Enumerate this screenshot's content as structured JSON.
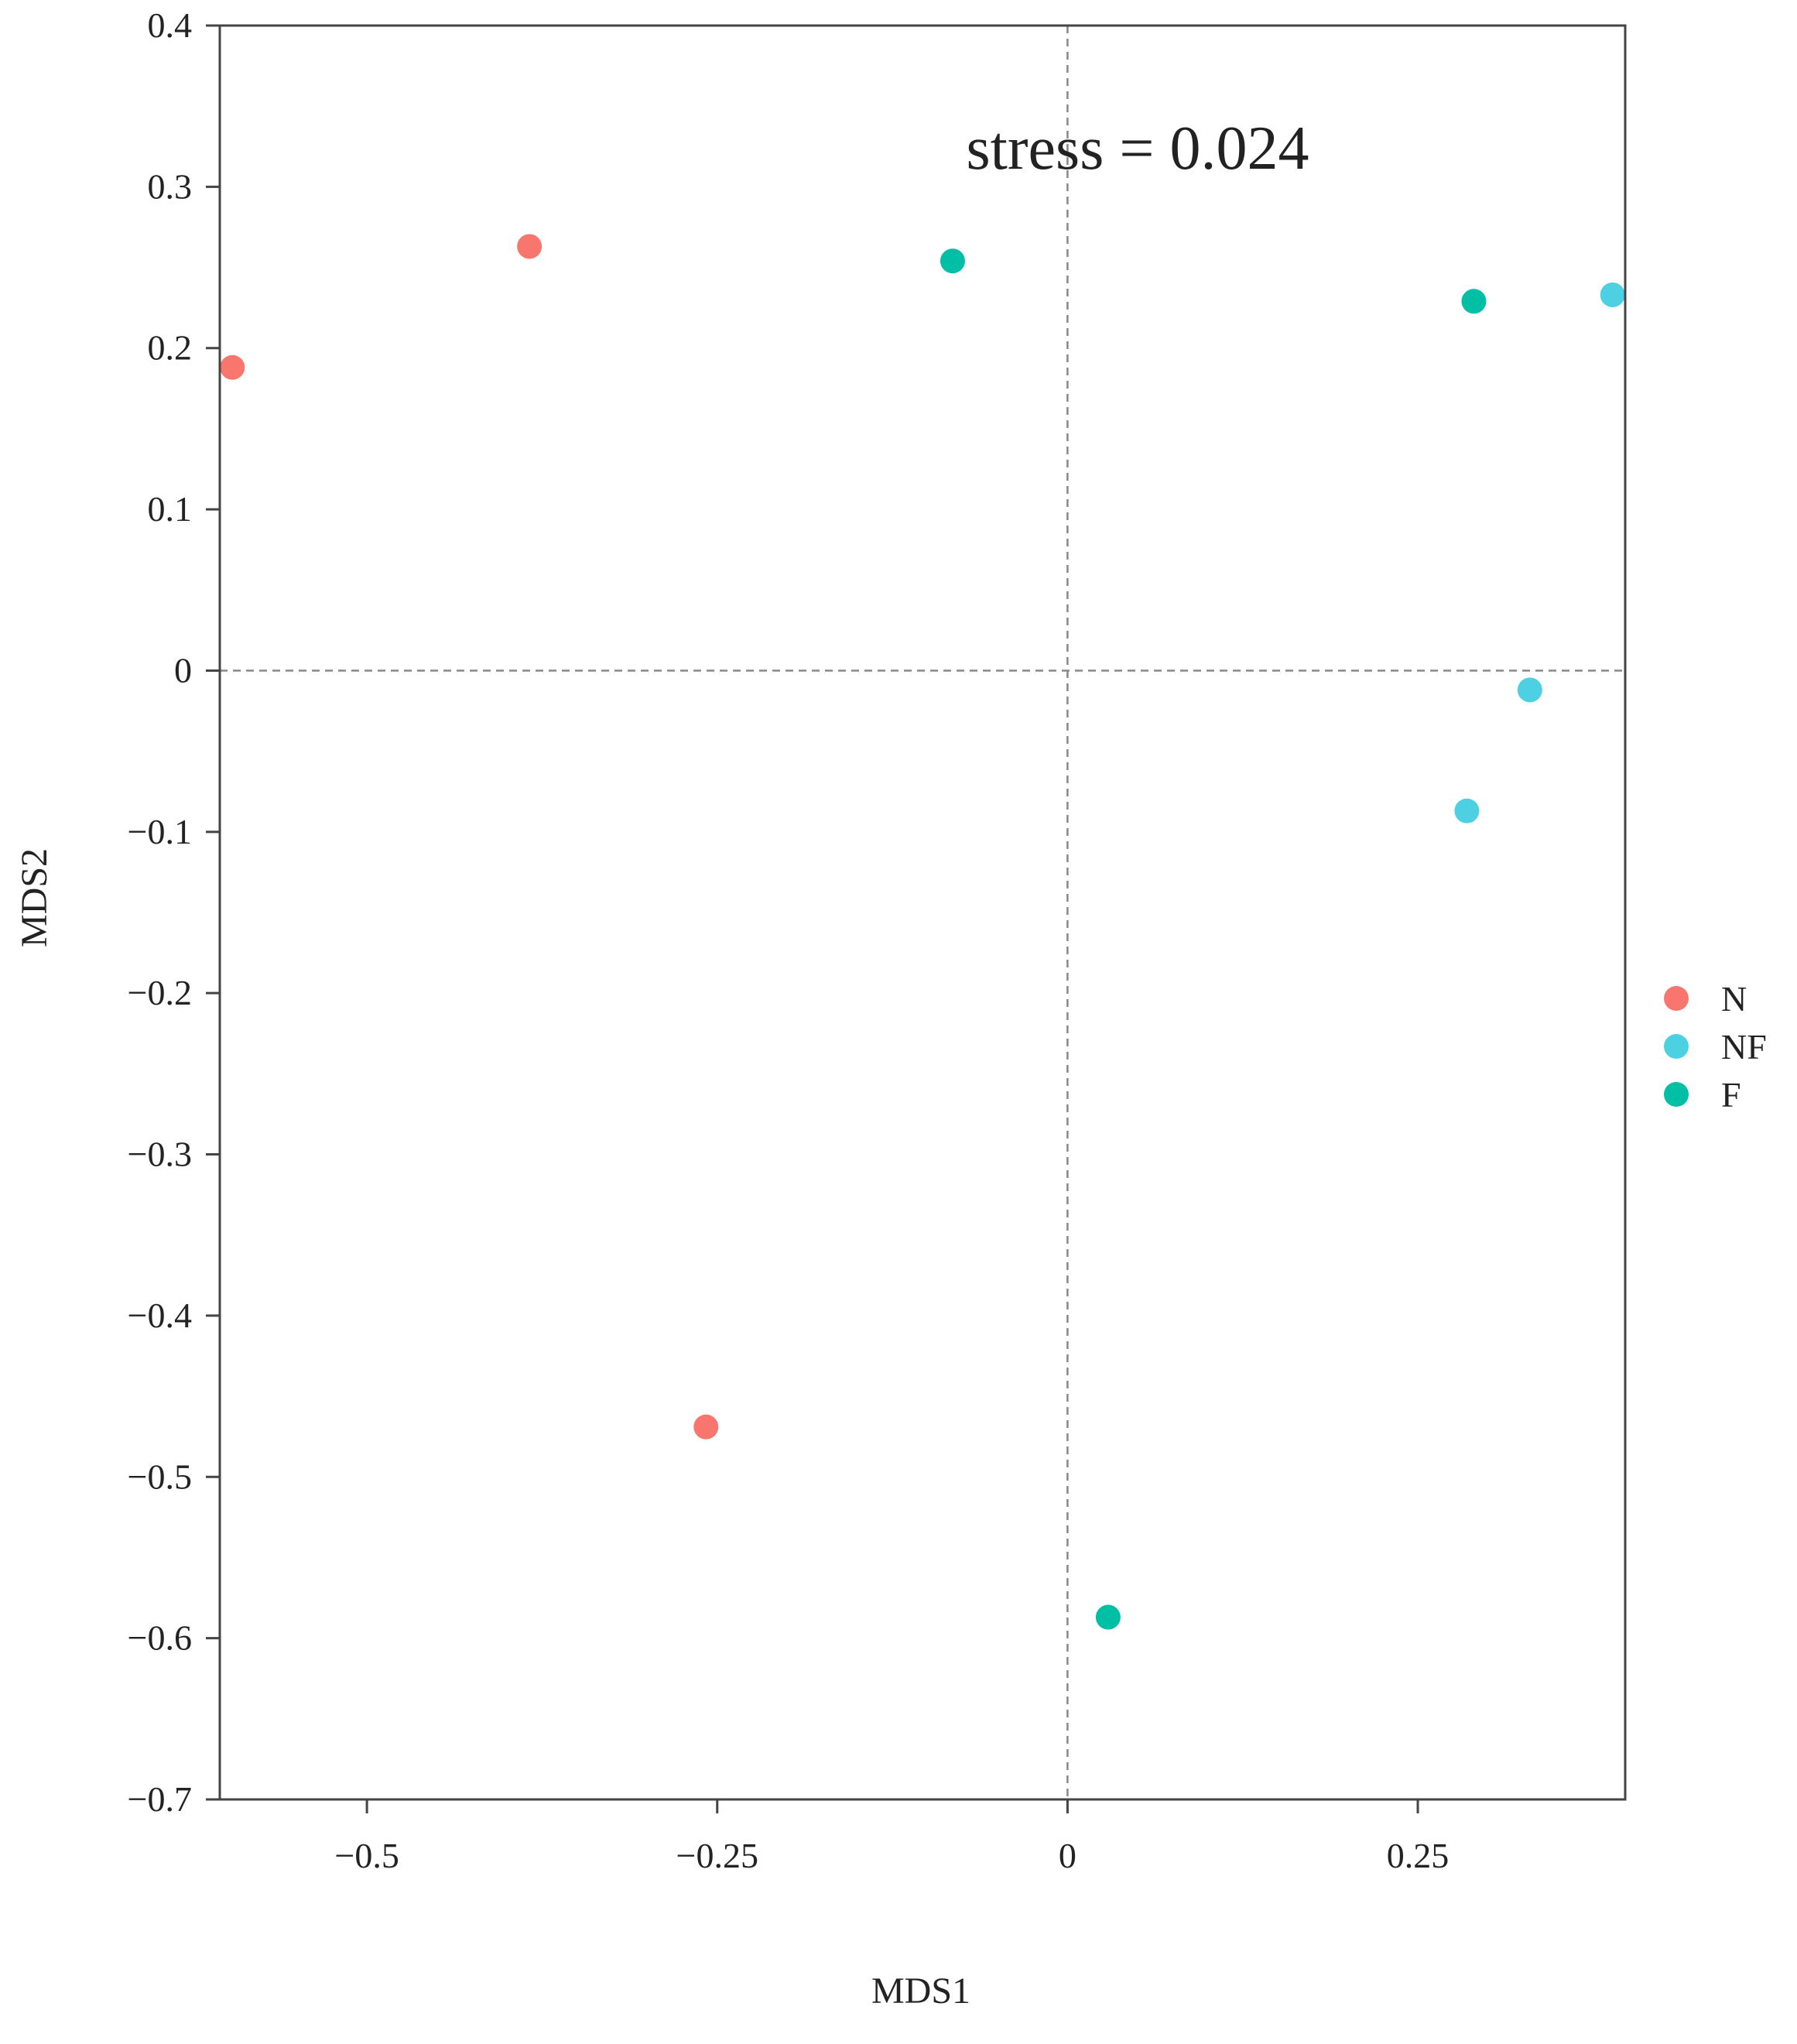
{
  "chart_data": {
    "type": "scatter",
    "title": "",
    "xlabel": "MDS1",
    "ylabel": "MDS2",
    "xlim": [
      -0.605,
      0.398
    ],
    "ylim": [
      -0.7,
      0.4
    ],
    "x_ticks": [
      -0.5,
      -0.25,
      0,
      0.25
    ],
    "x_tick_labels": [
      "−0.5",
      "−0.25",
      "0",
      "0.25"
    ],
    "y_ticks": [
      0.4,
      0.3,
      0.2,
      0.1,
      0,
      -0.1,
      -0.2,
      -0.3,
      -0.4,
      -0.5,
      -0.6,
      -0.7
    ],
    "y_tick_labels": [
      "0.4",
      "0.3",
      "0.2",
      "0.1",
      "0",
      "−0.1",
      "−0.2",
      "−0.3",
      "−0.4",
      "−0.5",
      "−0.6",
      "−0.7"
    ],
    "grid": false,
    "reference_lines": {
      "x": 0,
      "y": 0
    },
    "annotation": "stress = 0.024",
    "legend_position": "right",
    "series": [
      {
        "name": "N",
        "color": "#F8766D",
        "points": [
          {
            "x": -0.596,
            "y": 0.188
          },
          {
            "x": -0.384,
            "y": 0.263
          },
          {
            "x": -0.258,
            "y": -0.469
          }
        ]
      },
      {
        "name": "NF",
        "color": "#4DD0E1",
        "points": [
          {
            "x": 0.389,
            "y": 0.233
          },
          {
            "x": 0.33,
            "y": -0.012
          },
          {
            "x": 0.285,
            "y": -0.087
          }
        ]
      },
      {
        "name": "F",
        "color": "#00BFA5",
        "points": [
          {
            "x": -0.082,
            "y": 0.254
          },
          {
            "x": 0.29,
            "y": 0.229
          },
          {
            "x": 0.029,
            "y": -0.587
          }
        ]
      }
    ]
  }
}
